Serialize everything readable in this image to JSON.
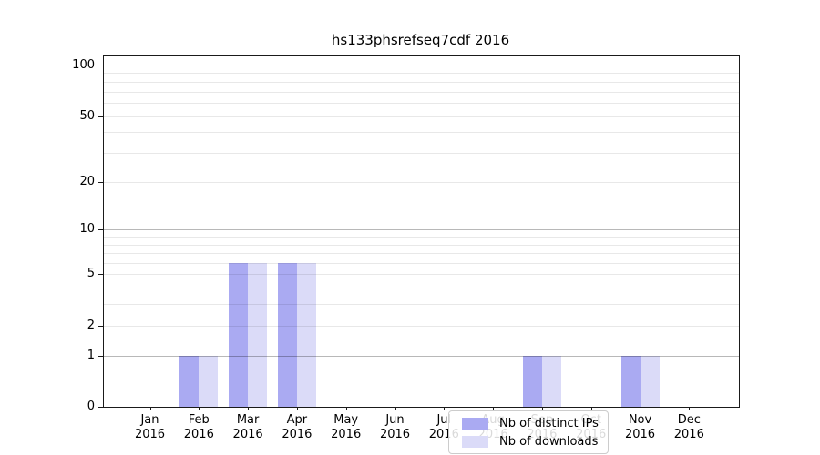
{
  "chart_data": {
    "type": "bar",
    "title": "hs133phsrefseq7cdf 2016",
    "categories": [
      "Jan",
      "Feb",
      "Mar",
      "Apr",
      "May",
      "Jun",
      "Jul",
      "Aug",
      "Sep",
      "Oct",
      "Nov",
      "Dec"
    ],
    "year": "2016",
    "series": [
      {
        "name": "Nb of distinct IPs",
        "color": "#aaaaf2",
        "values": [
          0,
          1,
          6,
          6,
          0,
          0,
          0,
          0,
          1,
          0,
          1,
          0
        ]
      },
      {
        "name": "Nb of downloads",
        "color": "#dbdbf8",
        "values": [
          0,
          1,
          6,
          6,
          0,
          0,
          0,
          0,
          1,
          0,
          1,
          0
        ]
      }
    ],
    "y_axis": {
      "scale": "log1p",
      "ticks": [
        0,
        1,
        2,
        5,
        10,
        20,
        50,
        100
      ],
      "major_gridlines": [
        1,
        10,
        100
      ],
      "minor_gridlines": [
        2,
        3,
        4,
        5,
        6,
        7,
        8,
        9,
        20,
        30,
        40,
        50,
        60,
        70,
        80,
        90
      ],
      "top_value": 114.6,
      "ylim": [
        0,
        114.6
      ]
    },
    "x_axis": {
      "label_line2": "2016"
    },
    "legend_position": "lower center",
    "grid": "on"
  }
}
